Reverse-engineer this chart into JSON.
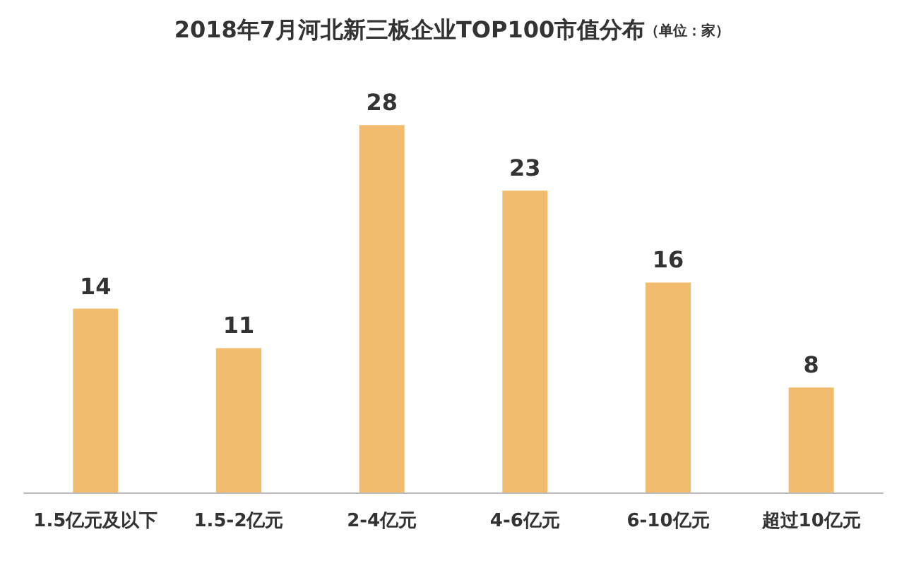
{
  "chart_data": {
    "type": "bar",
    "title": "2018年7月河北新三板企业TOP100市值分布",
    "subtitle": "（单位：家）",
    "categories": [
      "1.5亿元及以下",
      "1.5-2亿元",
      "2-4亿元",
      "4-6亿元",
      "6-10亿元",
      "超过10亿元"
    ],
    "values": [
      14,
      11,
      28,
      23,
      16,
      8
    ],
    "color": "#f2bc6e",
    "data_labels": true
  }
}
